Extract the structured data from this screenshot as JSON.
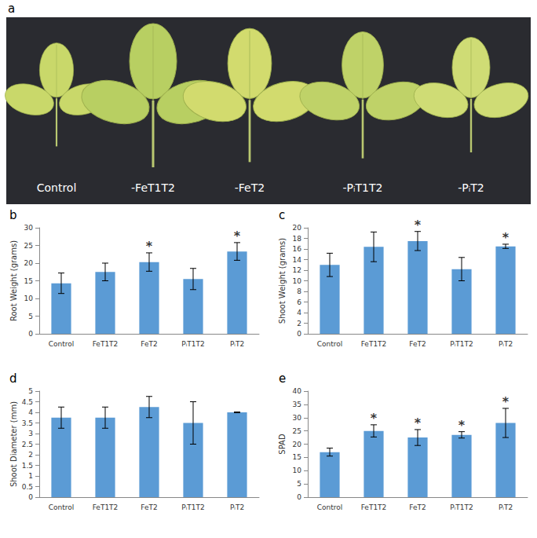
{
  "panel_a": {
    "panel": "a",
    "labels": [
      "Control",
      "-FeT1T2",
      "-FeT2",
      "-PᵢT1T2",
      "-PᵢT2"
    ]
  },
  "chart_data": [
    {
      "type": "bar",
      "panel": "b",
      "y_label": "Root Weight (grams)",
      "categories": [
        "Control",
        "FeT1T2",
        "FeT2",
        "PᵢT1T2",
        "PᵢT2"
      ],
      "values": [
        14.3,
        17.5,
        20.3,
        15.5,
        23.3
      ],
      "errors": [
        2.9,
        2.5,
        2.6,
        3.0,
        2.5
      ],
      "annotations": [
        null,
        null,
        "*",
        null,
        "*"
      ],
      "color": "#5b9bd5",
      "ylim": [
        0,
        30
      ],
      "yticks": [
        0,
        5,
        10,
        15,
        20,
        25,
        30
      ],
      "grid": false
    },
    {
      "type": "bar",
      "panel": "c",
      "y_label": "Shoot Weight (grams)",
      "categories": [
        "Control",
        "FeT1T2",
        "FeT2",
        "PᵢT1T2",
        "PᵢT2"
      ],
      "values": [
        13.0,
        16.4,
        17.5,
        12.2,
        16.5
      ],
      "errors": [
        2.2,
        2.8,
        1.8,
        2.2,
        0.4
      ],
      "annotations": [
        null,
        null,
        "*",
        null,
        "*"
      ],
      "color": "#5b9bd5",
      "ylim": [
        0,
        20
      ],
      "yticks": [
        0,
        2,
        4,
        6,
        8,
        10,
        12,
        14,
        16,
        18,
        20
      ],
      "grid": false
    },
    {
      "type": "bar",
      "panel": "d",
      "y_label": "Shoot Diameter (mm)",
      "categories": [
        "Control",
        "FeT1T2",
        "FeT2",
        "PᵢT1T2",
        "PᵢT2"
      ],
      "values": [
        3.75,
        3.75,
        4.25,
        3.5,
        4.0
      ],
      "errors": [
        0.5,
        0.5,
        0.5,
        1.0,
        0.02
      ],
      "annotations": [
        null,
        null,
        null,
        null,
        null
      ],
      "color": "#5b9bd5",
      "ylim": [
        0,
        5
      ],
      "yticks": [
        0,
        0.5,
        1,
        1.5,
        2,
        2.5,
        3,
        3.5,
        4,
        4.5,
        5
      ],
      "grid": false
    },
    {
      "type": "bar",
      "panel": "e",
      "y_label": "SPAD",
      "categories": [
        "Control",
        "FeT1T2",
        "FeT2",
        "PᵢT1T2",
        "PᵢT2"
      ],
      "values": [
        17.0,
        25.0,
        22.5,
        23.5,
        28.0
      ],
      "errors": [
        1.5,
        2.3,
        3.0,
        1.2,
        5.5
      ],
      "annotations": [
        null,
        "*",
        "*",
        "*",
        "*"
      ],
      "color": "#5b9bd5",
      "ylim": [
        0,
        40
      ],
      "yticks": [
        0,
        5,
        10,
        15,
        20,
        25,
        30,
        35,
        40
      ],
      "grid": false
    }
  ]
}
